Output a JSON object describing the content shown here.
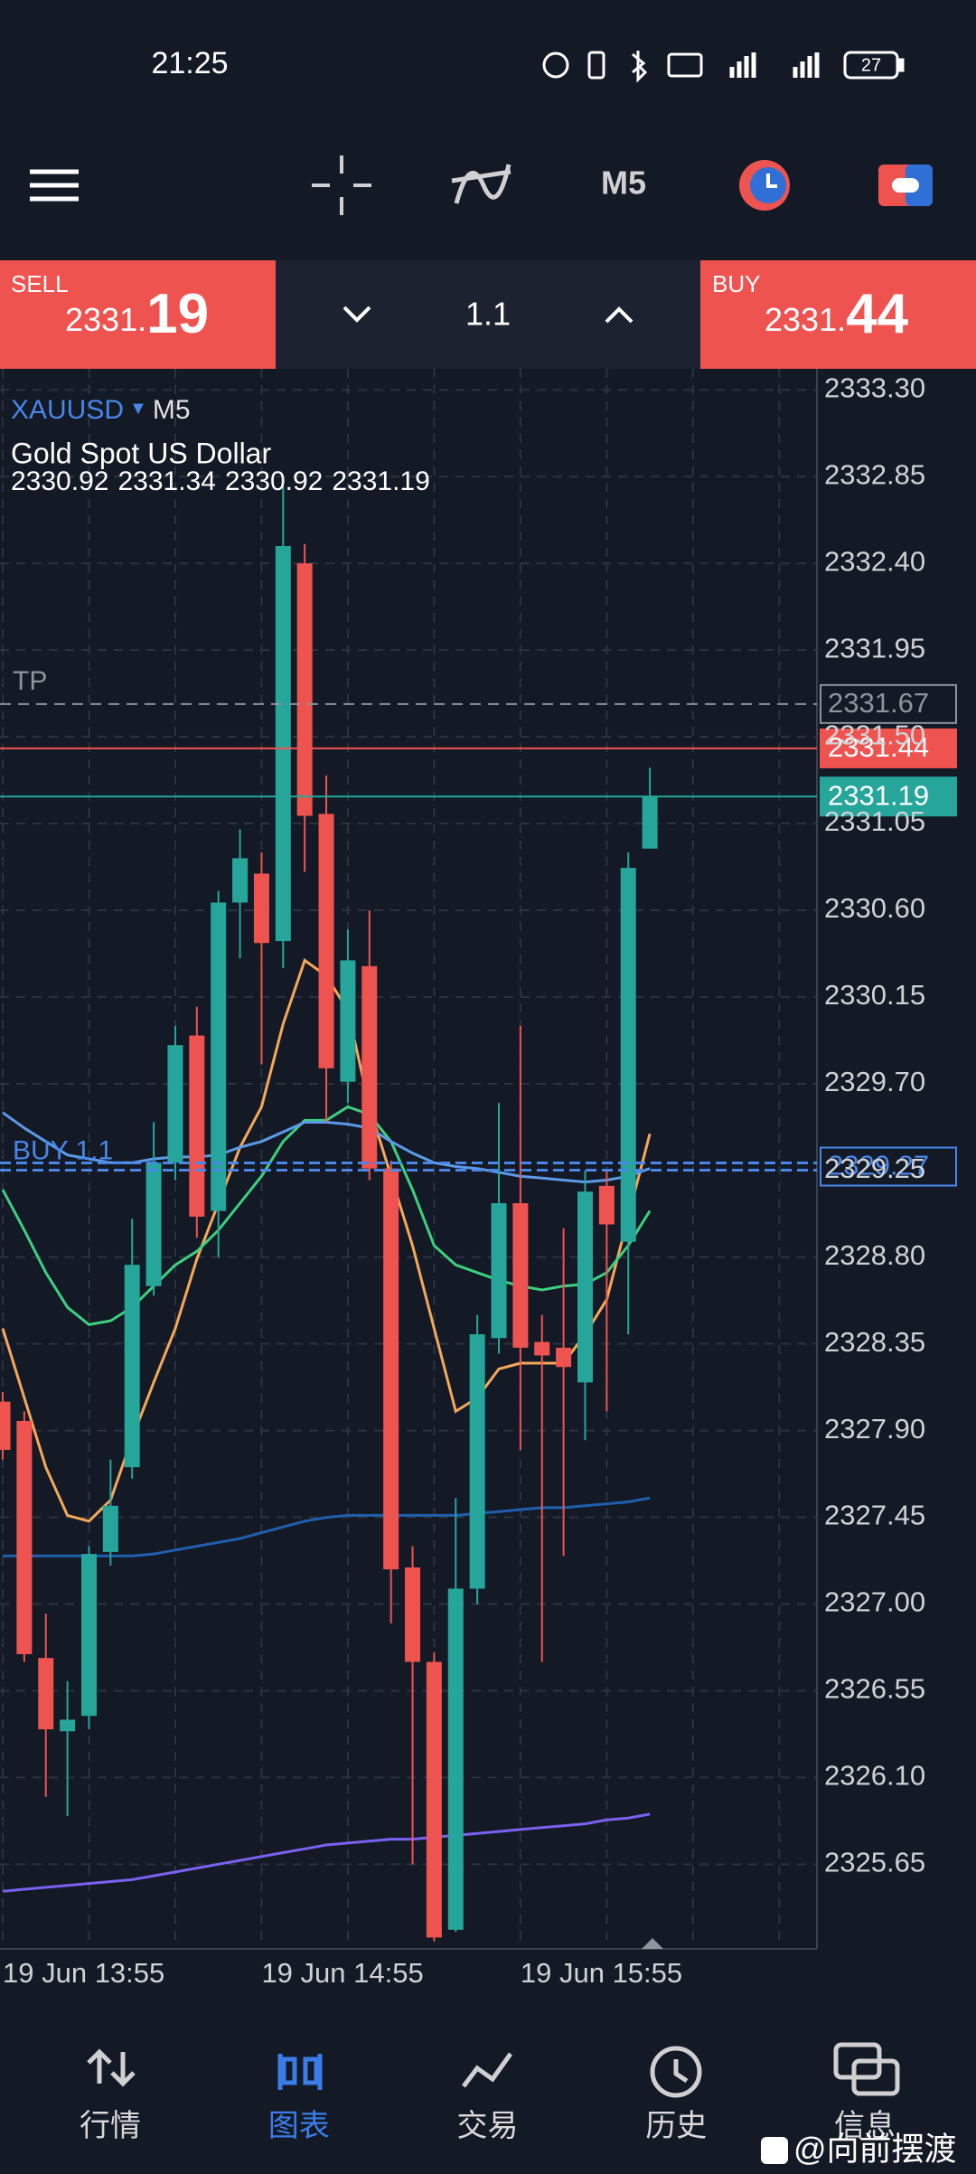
{
  "status_bar": {
    "time": "21:25",
    "battery": "27"
  },
  "toolbar": {
    "timeframe": "M5"
  },
  "trade_bar": {
    "sell": {
      "label": "SELL",
      "price_main": "2331.",
      "price_pips": "19"
    },
    "volume": "1.1",
    "buy": {
      "label": "BUY",
      "price_main": "2331.",
      "price_pips": "44"
    }
  },
  "chart_data": {
    "type": "candlestick",
    "symbol": "XAUUSD",
    "timeframe": "M5",
    "description": "Gold Spot US Dollar",
    "categories": [
      "19 Jun 13:55",
      null,
      null,
      null,
      null,
      null,
      null,
      null,
      null,
      null,
      null,
      null,
      "19 Jun 14:55",
      null,
      null,
      null,
      null,
      null,
      null,
      null,
      null,
      null,
      null,
      null,
      "19 Jun 15:55",
      null,
      null,
      null,
      null,
      null,
      null
    ],
    "open": [
      2328.05,
      2327.95,
      2326.72,
      2326.34,
      2326.42,
      2327.27,
      2327.71,
      2328.65,
      2329.29,
      2329.95,
      2329.04,
      2330.64,
      2330.79,
      2330.44,
      2332.4,
      2331.1,
      2329.71,
      2330.31,
      2329.26,
      2327.19,
      2326.7,
      2325.31,
      2327.08,
      2328.38,
      2329.08,
      2328.36,
      2328.33,
      2328.15,
      2329.17,
      2328.88,
      2330.92
    ],
    "high": [
      2328.1,
      2328.0,
      2326.95,
      2326.6,
      2327.3,
      2327.75,
      2329.0,
      2329.5,
      2330.0,
      2330.1,
      2330.7,
      2331.02,
      2330.9,
      2332.8,
      2332.5,
      2331.3,
      2330.5,
      2330.6,
      2329.3,
      2327.3,
      2326.75,
      2327.55,
      2328.5,
      2329.6,
      2330.0,
      2328.5,
      2328.95,
      2329.25,
      2329.25,
      2330.9,
      2331.34
    ],
    "low": [
      2327.75,
      2326.7,
      2326.0,
      2325.9,
      2326.35,
      2327.2,
      2327.65,
      2328.6,
      2329.2,
      2328.9,
      2328.8,
      2330.35,
      2329.8,
      2330.3,
      2330.8,
      2329.5,
      2329.6,
      2329.2,
      2326.9,
      2325.65,
      2325.25,
      2325.3,
      2327.0,
      2328.3,
      2327.8,
      2326.7,
      2327.25,
      2327.85,
      2328.0,
      2328.4,
      2330.92
    ],
    "close": [
      2327.8,
      2326.74,
      2326.35,
      2326.4,
      2327.26,
      2327.51,
      2328.76,
      2329.29,
      2329.9,
      2329.01,
      2330.64,
      2330.87,
      2330.43,
      2332.49,
      2331.09,
      2329.78,
      2330.34,
      2329.26,
      2327.18,
      2326.7,
      2325.27,
      2327.08,
      2328.4,
      2329.08,
      2328.33,
      2328.29,
      2328.23,
      2329.14,
      2328.97,
      2330.82,
      2331.19
    ],
    "up_color": "#26a69a",
    "down_color": "#ef5350",
    "series": [
      {
        "color": "#f5a85a",
        "values": [
          2328.43,
          2328.07,
          2327.71,
          2327.46,
          2327.43,
          2327.54,
          2327.86,
          2328.15,
          2328.43,
          2328.79,
          2329.08,
          2329.37,
          2329.58,
          2330.01,
          2330.34,
          2330.26,
          2330.08,
          2329.58,
          2329.22,
          2328.86,
          2328.43,
          2328.0,
          2328.07,
          2328.22,
          2328.25,
          2328.25,
          2328.25,
          2328.4,
          2328.58,
          2329.01,
          2329.44
        ]
      },
      {
        "color": "#3ecf7e",
        "values": [
          2329.15,
          2328.94,
          2328.72,
          2328.54,
          2328.45,
          2328.47,
          2328.54,
          2328.65,
          2328.76,
          2328.83,
          2328.94,
          2329.08,
          2329.22,
          2329.4,
          2329.51,
          2329.51,
          2329.58,
          2329.54,
          2329.4,
          2329.15,
          2328.86,
          2328.76,
          2328.72,
          2328.68,
          2328.65,
          2328.63,
          2328.65,
          2328.66,
          2328.72,
          2328.86,
          2329.04
        ]
      },
      {
        "color": "#5b9ae8",
        "values": [
          2329.55,
          2329.47,
          2329.4,
          2329.33,
          2329.31,
          2329.29,
          2329.29,
          2329.31,
          2329.32,
          2329.32,
          2329.33,
          2329.37,
          2329.4,
          2329.45,
          2329.5,
          2329.5,
          2329.49,
          2329.47,
          2329.4,
          2329.34,
          2329.29,
          2329.27,
          2329.26,
          2329.24,
          2329.22,
          2329.21,
          2329.2,
          2329.19,
          2329.2,
          2329.22,
          2329.26
        ]
      },
      {
        "color": "#1f5fae",
        "values": [
          2327.25,
          2327.25,
          2327.25,
          2327.25,
          2327.25,
          2327.25,
          2327.25,
          2327.26,
          2327.28,
          2327.3,
          2327.32,
          2327.34,
          2327.37,
          2327.4,
          2327.43,
          2327.45,
          2327.46,
          2327.46,
          2327.46,
          2327.46,
          2327.46,
          2327.46,
          2327.47,
          2327.48,
          2327.49,
          2327.5,
          2327.5,
          2327.51,
          2327.52,
          2327.53,
          2327.55
        ]
      },
      {
        "color": "#7b61f0",
        "values": [
          2325.51,
          2325.52,
          2325.53,
          2325.54,
          2325.55,
          2325.56,
          2325.57,
          2325.59,
          2325.61,
          2325.63,
          2325.65,
          2325.67,
          2325.69,
          2325.71,
          2325.73,
          2325.75,
          2325.76,
          2325.77,
          2325.78,
          2325.78,
          2325.79,
          2325.8,
          2325.81,
          2325.82,
          2325.83,
          2325.84,
          2325.85,
          2325.86,
          2325.88,
          2325.89,
          2325.91
        ]
      }
    ],
    "lines": [
      {
        "label": "TP",
        "value": 2331.67,
        "color": "#8e949c",
        "style": "dashed",
        "tag": "outline"
      },
      {
        "value": 2331.44,
        "color": "#ef5350",
        "style": "solid",
        "tag": "fill"
      },
      {
        "value": 2331.19,
        "color": "#26a69a",
        "style": "solid",
        "tag": "fill"
      },
      {
        "label": "BUY 1.1",
        "value": 2329.27,
        "color": "#4a86e8",
        "style": "double-dashed",
        "tag": "outline"
      }
    ],
    "ylim": [
      2325.22,
      2333.4
    ],
    "yticks": [
      {
        "value": 2333.3,
        "label": "2333.30"
      },
      2332.85,
      {
        "value": 2332.4,
        "label": "2332.40"
      },
      2331.95,
      {
        "value": 2331.5,
        "label": "2331.50"
      },
      2331.05,
      {
        "value": 2330.6,
        "label": "2330.60"
      },
      2330.15,
      {
        "value": 2329.7,
        "label": "2329.70"
      },
      2329.25,
      {
        "value": 2328.8,
        "label": "2328.80"
      },
      2328.35,
      {
        "value": 2327.9,
        "label": "2327.90"
      },
      2327.45,
      {
        "value": 2327.0,
        "label": "2327.00"
      },
      2326.55,
      {
        "value": 2326.1,
        "label": "2326.10"
      },
      2325.65
    ],
    "grid": true
  },
  "bottom_nav": [
    {
      "label": "行情",
      "active": false
    },
    {
      "label": "图表",
      "active": true
    },
    {
      "label": "交易",
      "active": false
    },
    {
      "label": "历史",
      "active": false
    },
    {
      "label": "信息",
      "active": false
    }
  ],
  "watermark": "@向前摆渡"
}
